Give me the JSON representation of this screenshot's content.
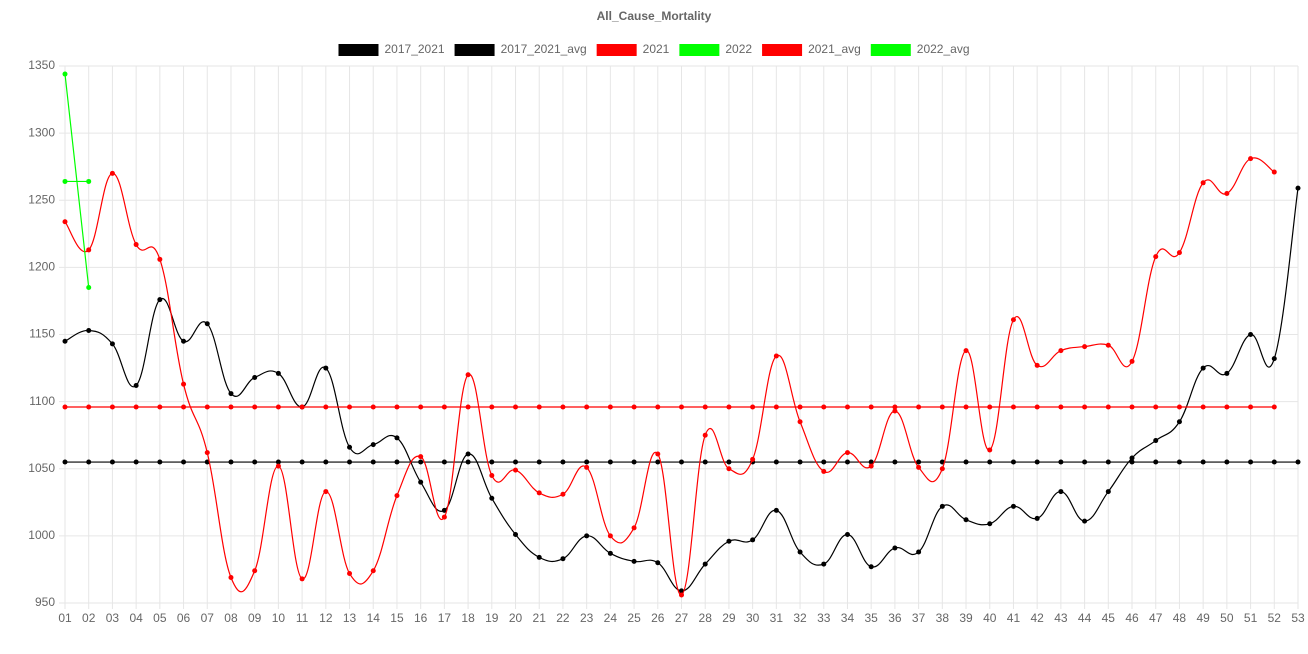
{
  "chart_data": {
    "type": "line",
    "title": "All_Cause_Mortality",
    "categories": [
      "01",
      "02",
      "03",
      "04",
      "05",
      "06",
      "07",
      "08",
      "09",
      "10",
      "11",
      "12",
      "13",
      "14",
      "15",
      "16",
      "17",
      "18",
      "19",
      "20",
      "21",
      "22",
      "23",
      "24",
      "25",
      "26",
      "27",
      "28",
      "29",
      "30",
      "31",
      "32",
      "33",
      "34",
      "35",
      "36",
      "37",
      "38",
      "39",
      "40",
      "41",
      "42",
      "43",
      "44",
      "45",
      "46",
      "47",
      "48",
      "49",
      "50",
      "51",
      "52",
      "53"
    ],
    "series": [
      {
        "name": "2017_2021",
        "color": "#000000",
        "values": [
          1145,
          1153,
          1143,
          1112,
          1176,
          1145,
          1158,
          1106,
          1118,
          1121,
          1096,
          1125,
          1066,
          1068,
          1073,
          1040,
          1019,
          1061,
          1028,
          1001,
          984,
          983,
          1000,
          987,
          981,
          980,
          959,
          979,
          996,
          997,
          1019,
          988,
          979,
          1001,
          977,
          991,
          988,
          1022,
          1012,
          1009,
          1022,
          1013,
          1033,
          1011,
          1033,
          1058,
          1071,
          1085,
          1125,
          1121,
          1150,
          1132,
          1259
        ]
      },
      {
        "name": "2017_2021_avg",
        "color": "#000000",
        "values": [
          1055,
          1055,
          1055,
          1055,
          1055,
          1055,
          1055,
          1055,
          1055,
          1055,
          1055,
          1055,
          1055,
          1055,
          1055,
          1055,
          1055,
          1055,
          1055,
          1055,
          1055,
          1055,
          1055,
          1055,
          1055,
          1055,
          1055,
          1055,
          1055,
          1055,
          1055,
          1055,
          1055,
          1055,
          1055,
          1055,
          1055,
          1055,
          1055,
          1055,
          1055,
          1055,
          1055,
          1055,
          1055,
          1055,
          1055,
          1055,
          1055,
          1055,
          1055,
          1055,
          1055
        ]
      },
      {
        "name": "2021",
        "color": "#ff0000",
        "values": [
          1234,
          1213,
          1270,
          1217,
          1206,
          1113,
          1062,
          969,
          974,
          1052,
          968,
          1033,
          972,
          974,
          1030,
          1059,
          1014,
          1120,
          1045,
          1049,
          1032,
          1031,
          1051,
          1000,
          1006,
          1061,
          956,
          1075,
          1050,
          1057,
          1134,
          1085,
          1048,
          1062,
          1052,
          1093,
          1051,
          1050,
          1138,
          1064,
          1161,
          1127,
          1138,
          1141,
          1142,
          1130,
          1208,
          1211,
          1263,
          1255,
          1281,
          1271,
          null
        ]
      },
      {
        "name": "2022",
        "color": "#00ff00",
        "values": [
          1344,
          1185,
          null,
          null,
          null,
          null,
          null,
          null,
          null,
          null,
          null,
          null,
          null,
          null,
          null,
          null,
          null,
          null,
          null,
          null,
          null,
          null,
          null,
          null,
          null,
          null,
          null,
          null,
          null,
          null,
          null,
          null,
          null,
          null,
          null,
          null,
          null,
          null,
          null,
          null,
          null,
          null,
          null,
          null,
          null,
          null,
          null,
          null,
          null,
          null,
          null,
          null,
          null
        ]
      },
      {
        "name": "2021_avg",
        "color": "#ff0000",
        "values": [
          1096,
          1096,
          1096,
          1096,
          1096,
          1096,
          1096,
          1096,
          1096,
          1096,
          1096,
          1096,
          1096,
          1096,
          1096,
          1096,
          1096,
          1096,
          1096,
          1096,
          1096,
          1096,
          1096,
          1096,
          1096,
          1096,
          1096,
          1096,
          1096,
          1096,
          1096,
          1096,
          1096,
          1096,
          1096,
          1096,
          1096,
          1096,
          1096,
          1096,
          1096,
          1096,
          1096,
          1096,
          1096,
          1096,
          1096,
          1096,
          1096,
          1096,
          1096,
          1096,
          null
        ]
      },
      {
        "name": "2022_avg",
        "color": "#00ff00",
        "values": [
          1264,
          1264,
          null,
          null,
          null,
          null,
          null,
          null,
          null,
          null,
          null,
          null,
          null,
          null,
          null,
          null,
          null,
          null,
          null,
          null,
          null,
          null,
          null,
          null,
          null,
          null,
          null,
          null,
          null,
          null,
          null,
          null,
          null,
          null,
          null,
          null,
          null,
          null,
          null,
          null,
          null,
          null,
          null,
          null,
          null,
          null,
          null,
          null,
          null,
          null,
          null,
          null,
          null
        ]
      }
    ],
    "ylim": [
      950,
      1350
    ],
    "yticks": [
      950,
      1000,
      1050,
      1100,
      1150,
      1200,
      1250,
      1300,
      1350
    ],
    "grid": true
  }
}
